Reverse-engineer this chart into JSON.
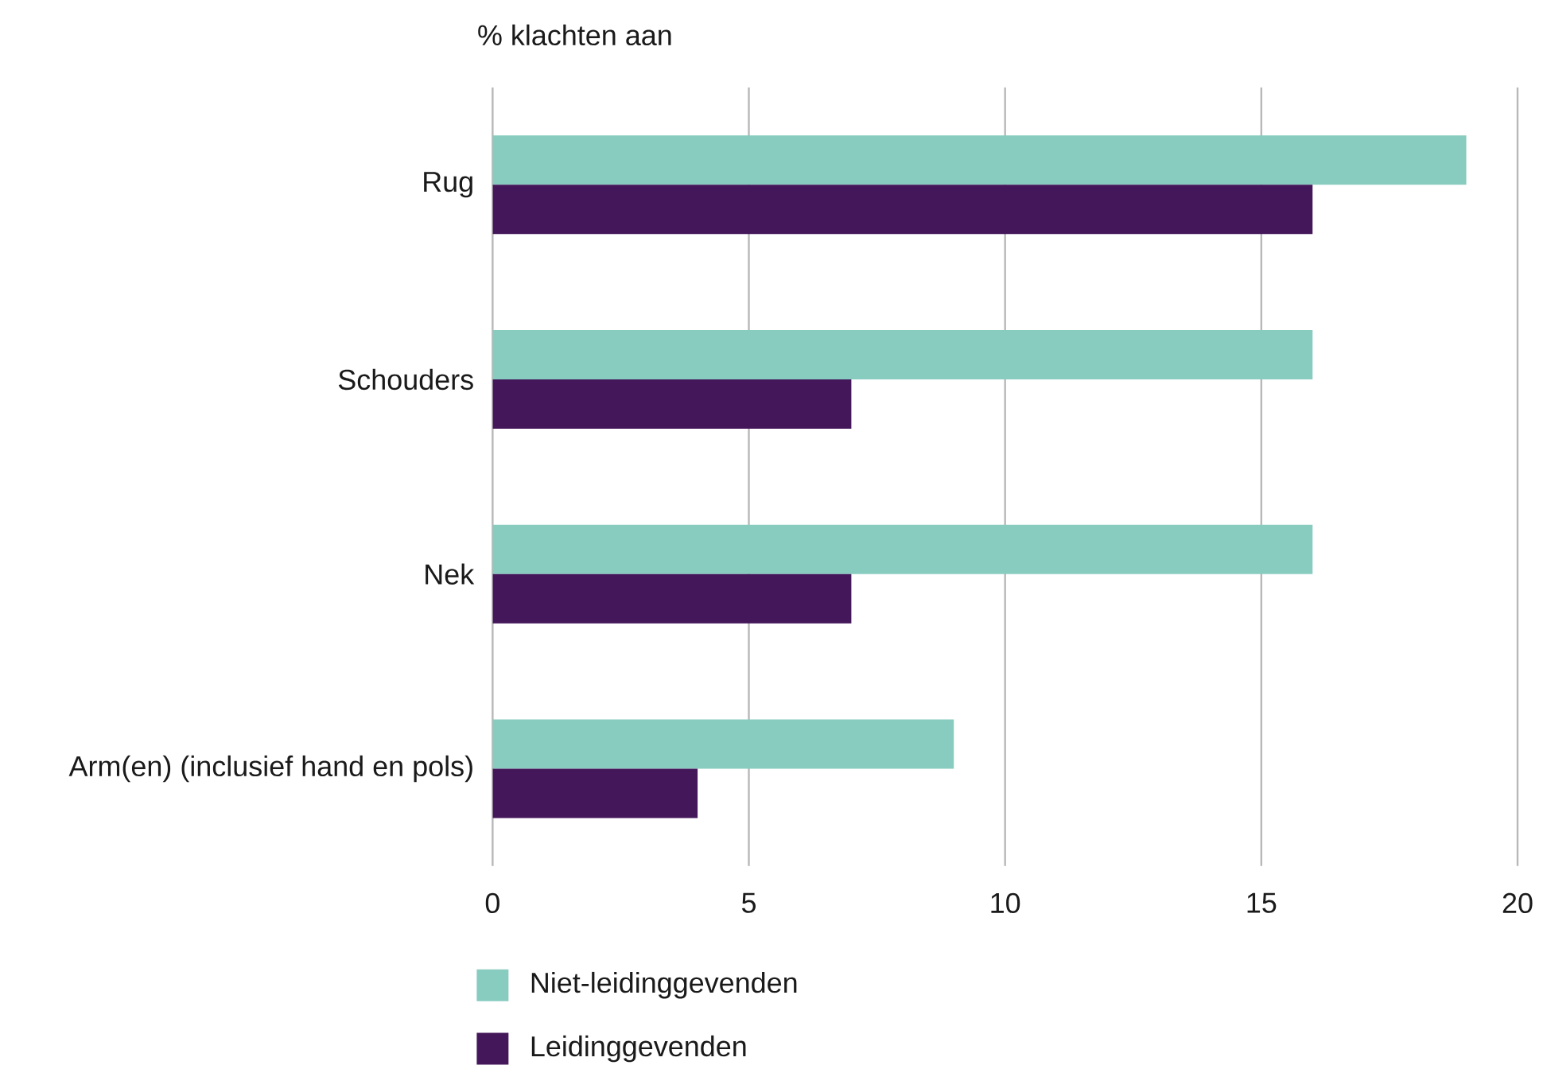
{
  "chart_data": {
    "type": "bar",
    "orientation": "horizontal",
    "title": "% klachten aan",
    "categories": [
      "Rug",
      "Schouders",
      "Nek",
      "Arm(en) (inclusief hand en pols)"
    ],
    "series": [
      {
        "name": "Niet-leidinggevenden",
        "color": "#88cbbf",
        "values": [
          19,
          16,
          16,
          9
        ]
      },
      {
        "name": "Leidinggevenden",
        "color": "#44175a",
        "values": [
          16,
          7,
          7,
          4
        ]
      }
    ],
    "xlim": [
      0,
      20
    ],
    "xticks": [
      0,
      5,
      10,
      15,
      20
    ],
    "grid": "x",
    "legend": "bottom"
  }
}
